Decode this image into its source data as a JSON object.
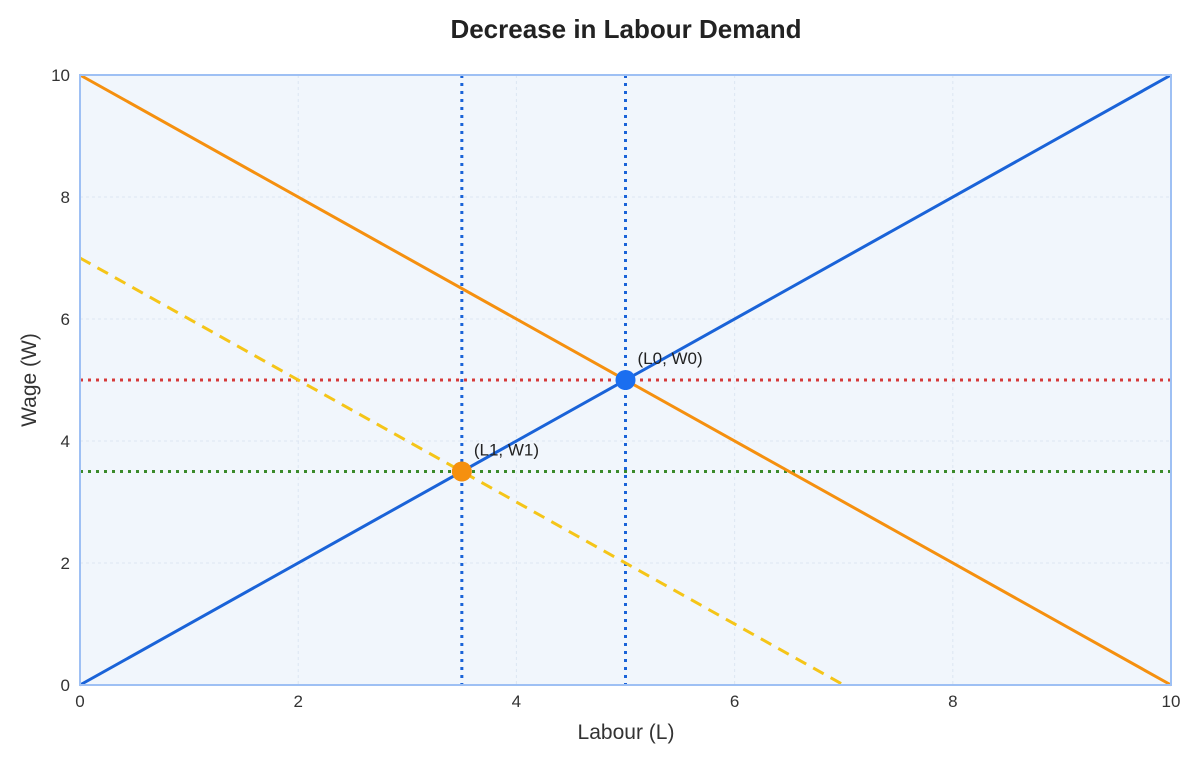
{
  "chart_data": {
    "type": "line",
    "title": "Decrease in Labour Demand",
    "xlabel": "Labour (L)",
    "ylabel": "Wage (W)",
    "xlim": [
      0,
      10
    ],
    "ylim": [
      0,
      10
    ],
    "x_ticks": [
      "0",
      "2",
      "4",
      "6",
      "8",
      "10"
    ],
    "y_ticks": [
      "0",
      "2",
      "4",
      "6",
      "8",
      "10"
    ],
    "grid": true,
    "legend": "none",
    "colors": {
      "background": "#f1f6fc",
      "frame": "#9ec0f4",
      "grid": "#dde6f2",
      "supply": "#1a63d8",
      "demand": "#f5900f",
      "new_demand": "#f5c518",
      "wage_w0": "#d63a3a",
      "wage_w1": "#3a8a2a",
      "guide_vertical": "#1a63d8",
      "point_original": "#1a6ef0",
      "point_new": "#f5900f"
    },
    "series": [
      {
        "key": "supply",
        "style": "solid",
        "points": [
          [
            0,
            0
          ],
          [
            10,
            10
          ]
        ]
      },
      {
        "key": "demand",
        "style": "solid",
        "points": [
          [
            0,
            10
          ],
          [
            10,
            0
          ]
        ]
      },
      {
        "key": "new_demand",
        "style": "dashed",
        "points": [
          [
            0,
            7
          ],
          [
            7,
            0
          ]
        ]
      }
    ],
    "reference_lines": [
      {
        "key": "wage_w0",
        "orientation": "horizontal",
        "value": 5
      },
      {
        "key": "wage_w1",
        "orientation": "horizontal",
        "value": 3.5
      },
      {
        "key": "guide_vertical",
        "orientation": "vertical",
        "value": 5
      },
      {
        "key": "guide_vertical",
        "orientation": "vertical",
        "value": 3.5
      }
    ],
    "points": [
      {
        "key": "point_original",
        "x": 5,
        "y": 5,
        "label": "(L0, W0)"
      },
      {
        "key": "point_new",
        "x": 3.5,
        "y": 3.5,
        "label": "(L1, W1)"
      }
    ]
  }
}
